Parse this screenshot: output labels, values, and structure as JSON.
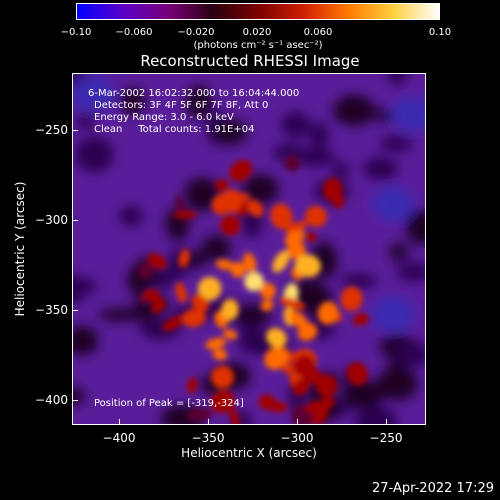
{
  "colorbar": {
    "ticks": [
      "−0.10",
      "−0.060",
      "−0.020",
      "0.020",
      "0.060",
      "0.10"
    ],
    "colors": [
      "#0000ff",
      "#5a00c8",
      "#7a007a",
      "#2a0010",
      "#7a0000",
      "#d02000",
      "#ff7a00",
      "#ffd040",
      "#ffffff"
    ]
  },
  "units": "(photons cm⁻² s⁻¹ asec⁻²)",
  "title": "Reconstructed RHESSI Image",
  "info": {
    "line1": "6-Mar-2002 16:02:32.000 to 16:04:44.000",
    "line2": "Detectors: 3F 4F 5F 6F 7F 8F, Att 0",
    "line3": "Energy Range: 3.0 - 6.0 keV",
    "line4": "Clean     Total counts: 1.91E+04"
  },
  "peak": "Position of Peak = [-319,-324]",
  "axes": {
    "x_label": "Heliocentric X (arcsec)",
    "y_label": "Heliocentric Y (arcsec)",
    "x_ticks": [
      "−400",
      "−350",
      "−300",
      "−250"
    ],
    "y_ticks": [
      "−250",
      "−300",
      "−350",
      "−400"
    ]
  },
  "timestamp": "27-Apr-2022 17:29"
}
